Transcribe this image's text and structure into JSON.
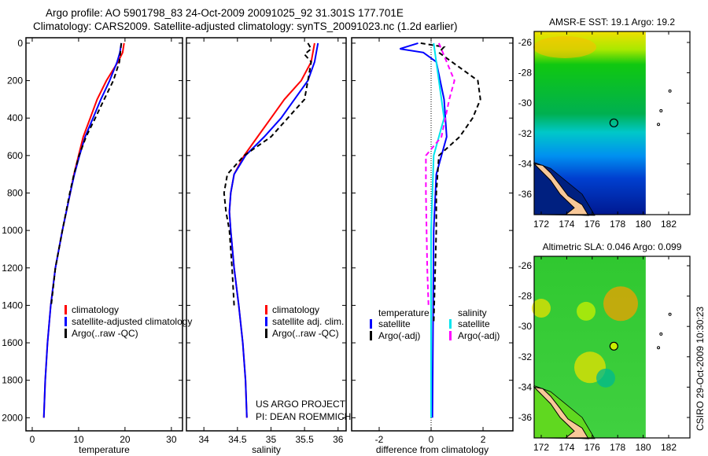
{
  "title_line1": "Argo profile: AO 5901798_83 24-Oct-2009 20091025_92 31.301S 177.701E",
  "title_line2": "Climatology: CARS2009. Satellite-adjusted climatology: synTS_20091023.nc (1.2d earlier)",
  "credit": "CSIRO 29-Oct-2009 10:30:23",
  "project_line1": "US ARGO PROJECT",
  "project_line2": "PI: DEAN ROEMMICH",
  "colors": {
    "red": "#ff0000",
    "blue": "#0000ff",
    "black": "#000000",
    "cyan": "#00e5ee",
    "magenta": "#ff00ff"
  },
  "chart_data": [
    {
      "type": "line",
      "id": "temperature",
      "xlabel": "temperature",
      "ylabel": "",
      "xlim": [
        -1.35,
        32.4
      ],
      "ylim": [
        2070,
        -29
      ],
      "xticks": [
        0,
        10,
        20,
        30
      ],
      "yticks": [
        0,
        200,
        400,
        600,
        800,
        1000,
        1200,
        1400,
        1600,
        1800,
        2000
      ],
      "legend": [
        "climatology",
        "satellite-adjusted climatology",
        "Argo(..raw -QC)"
      ],
      "series": [
        {
          "name": "climatology",
          "color": "red",
          "style": "solid",
          "points": [
            [
              19.8,
              0
            ],
            [
              19.5,
              50
            ],
            [
              18.5,
              100
            ],
            [
              16,
              200
            ],
            [
              14,
              300
            ],
            [
              12.5,
              400
            ],
            [
              11,
              500
            ],
            [
              10,
              600
            ],
            [
              9,
              700
            ],
            [
              8.2,
              800
            ],
            [
              6.5,
              1000
            ],
            [
              5,
              1200
            ],
            [
              4,
              1400
            ],
            [
              3.3,
              1600
            ],
            [
              2.8,
              1800
            ],
            [
              2.5,
              2000
            ]
          ]
        },
        {
          "name": "satellite-adjusted climatology",
          "color": "blue",
          "style": "solid",
          "points": [
            [
              19.2,
              0
            ],
            [
              18.9,
              50
            ],
            [
              18.3,
              100
            ],
            [
              16.7,
              200
            ],
            [
              14.8,
              300
            ],
            [
              13.1,
              400
            ],
            [
              11.4,
              500
            ],
            [
              10.2,
              600
            ],
            [
              9.1,
              700
            ],
            [
              8.2,
              800
            ],
            [
              6.5,
              1000
            ],
            [
              5,
              1200
            ],
            [
              4,
              1400
            ],
            [
              3.3,
              1600
            ],
            [
              2.8,
              1800
            ],
            [
              2.5,
              2000
            ]
          ]
        },
        {
          "name": "Argo(..raw -QC)",
          "color": "black",
          "style": "dashed",
          "points": [
            [
              19.2,
              0
            ],
            [
              19,
              50
            ],
            [
              18.8,
              100
            ],
            [
              17.5,
              200
            ],
            [
              15.5,
              300
            ],
            [
              13.6,
              400
            ],
            [
              11.6,
              500
            ],
            [
              10.1,
              600
            ],
            [
              9,
              700
            ],
            [
              8.1,
              800
            ],
            [
              6.5,
              1000
            ],
            [
              5,
              1200
            ],
            [
              4.1,
              1400
            ]
          ]
        }
      ]
    },
    {
      "type": "line",
      "id": "salinity",
      "xlabel": "salinity",
      "ylabel": "",
      "xlim": [
        33.74,
        36.12
      ],
      "ylim": [
        2070,
        -29
      ],
      "xticks": [
        34,
        34.5,
        35,
        35.5,
        36
      ],
      "yticks": [
        0,
        200,
        400,
        600,
        800,
        1000,
        1200,
        1400,
        1600,
        1800,
        2000
      ],
      "legend": [
        "climatology",
        "satellite adj. clim.",
        "Argo(..raw -QC)"
      ],
      "series": [
        {
          "name": "climatology",
          "color": "red",
          "style": "solid",
          "points": [
            [
              35.65,
              0
            ],
            [
              35.6,
              100
            ],
            [
              35.45,
              200
            ],
            [
              35.2,
              300
            ],
            [
              35.0,
              400
            ],
            [
              34.8,
              500
            ],
            [
              34.6,
              600
            ],
            [
              34.45,
              700
            ],
            [
              34.4,
              800
            ],
            [
              34.38,
              900
            ],
            [
              34.4,
              1000
            ],
            [
              34.45,
              1200
            ],
            [
              34.52,
              1400
            ],
            [
              34.58,
              1600
            ],
            [
              34.62,
              1800
            ],
            [
              34.64,
              2000
            ]
          ]
        },
        {
          "name": "satellite adj. clim.",
          "color": "blue",
          "style": "solid",
          "points": [
            [
              35.7,
              0
            ],
            [
              35.65,
              100
            ],
            [
              35.55,
              200
            ],
            [
              35.35,
              300
            ],
            [
              35.15,
              400
            ],
            [
              34.9,
              500
            ],
            [
              34.62,
              600
            ],
            [
              34.45,
              700
            ],
            [
              34.4,
              800
            ],
            [
              34.38,
              900
            ],
            [
              34.4,
              1000
            ],
            [
              34.45,
              1200
            ],
            [
              34.52,
              1400
            ],
            [
              34.58,
              1600
            ],
            [
              34.62,
              1800
            ],
            [
              34.64,
              2000
            ]
          ]
        },
        {
          "name": "Argo(..raw -QC)",
          "color": "black",
          "style": "dashed",
          "points": [
            [
              35.55,
              0
            ],
            [
              35.6,
              30
            ],
            [
              35.5,
              60
            ],
            [
              35.6,
              100
            ],
            [
              35.55,
              200
            ],
            [
              35.5,
              300
            ],
            [
              35.25,
              400
            ],
            [
              35.0,
              500
            ],
            [
              34.6,
              600
            ],
            [
              34.35,
              700
            ],
            [
              34.3,
              800
            ],
            [
              34.33,
              900
            ],
            [
              34.38,
              1000
            ],
            [
              34.42,
              1200
            ],
            [
              34.45,
              1400
            ]
          ]
        }
      ]
    },
    {
      "type": "line",
      "id": "difference",
      "xlabel": "difference from climatology",
      "ylabel": "",
      "xlim": [
        -3.06,
        3.15
      ],
      "ylim": [
        2070,
        -29
      ],
      "xticks": [
        -2,
        0,
        2
      ],
      "yticks": [
        0,
        200,
        400,
        600,
        800,
        1000,
        1200,
        1400,
        1600,
        1800,
        2000
      ],
      "legend_temperature_header": "temperature",
      "legend_salinity_header": "salinity",
      "legend": [
        "satellite",
        "Argo(-adj)",
        "satellite",
        "Argo(-adj)"
      ],
      "series": [
        {
          "name": "temperature satellite",
          "color": "blue",
          "style": "solid",
          "points": [
            [
              -0.5,
              0
            ],
            [
              -1.2,
              30
            ],
            [
              -0.3,
              50
            ],
            [
              0.2,
              100
            ],
            [
              0.5,
              300
            ],
            [
              0.6,
              500
            ],
            [
              0.4,
              600
            ],
            [
              0.2,
              700
            ],
            [
              0.1,
              1000
            ],
            [
              0.05,
              2000
            ]
          ]
        },
        {
          "name": "temperature Argo(-adj)",
          "color": "black",
          "style": "dashed",
          "points": [
            [
              -0.4,
              0
            ],
            [
              0.5,
              20
            ],
            [
              0.3,
              50
            ],
            [
              0.8,
              100
            ],
            [
              1.8,
              200
            ],
            [
              1.9,
              300
            ],
            [
              1.6,
              400
            ],
            [
              1.1,
              500
            ],
            [
              0.3,
              600
            ],
            [
              0.2,
              800
            ],
            [
              0.2,
              1000
            ],
            [
              0.1,
              1500
            ]
          ]
        },
        {
          "name": "salinity satellite",
          "color": "cyan",
          "style": "solid",
          "points": [
            [
              0.1,
              0
            ],
            [
              0.2,
              100
            ],
            [
              0.4,
              300
            ],
            [
              0.5,
              400
            ],
            [
              0.3,
              500
            ],
            [
              0.1,
              600
            ],
            [
              0.05,
              800
            ],
            [
              0,
              1000
            ],
            [
              0,
              2000
            ]
          ]
        },
        {
          "name": "salinity Argo(-adj)",
          "color": "magenta",
          "style": "dashed",
          "points": [
            [
              0.3,
              0
            ],
            [
              0.6,
              100
            ],
            [
              0.9,
              200
            ],
            [
              0.7,
              300
            ],
            [
              0.4,
              500
            ],
            [
              -0.2,
              600
            ],
            [
              -0.2,
              800
            ],
            [
              -0.15,
              1200
            ],
            [
              -0.1,
              1400
            ]
          ]
        }
      ]
    }
  ],
  "maps": [
    {
      "title": "AMSR-E SST: 19.1 Argo: 19.2",
      "lon_ticks": [
        172,
        174,
        176,
        178,
        180,
        182
      ],
      "lat_ticks": [
        -26,
        -28,
        -30,
        -32,
        -34,
        -36
      ],
      "lat_labels": [
        "-26",
        "-28",
        "-30",
        "-32",
        "-34",
        "-36"
      ],
      "profile_lon": 177.701,
      "profile_lat": -31.301
    },
    {
      "title": "Altimetric SLA: 0.046 Argo: 0.099",
      "lon_ticks": [
        172,
        174,
        176,
        178,
        180,
        182
      ],
      "lat_ticks": [
        -26,
        -28,
        -30,
        -32,
        -34,
        -36
      ],
      "lat_labels": [
        "-26",
        "-28",
        "-30",
        "-32",
        "-34",
        "-36"
      ],
      "profile_lon": 177.701,
      "profile_lat": -31.301
    }
  ]
}
